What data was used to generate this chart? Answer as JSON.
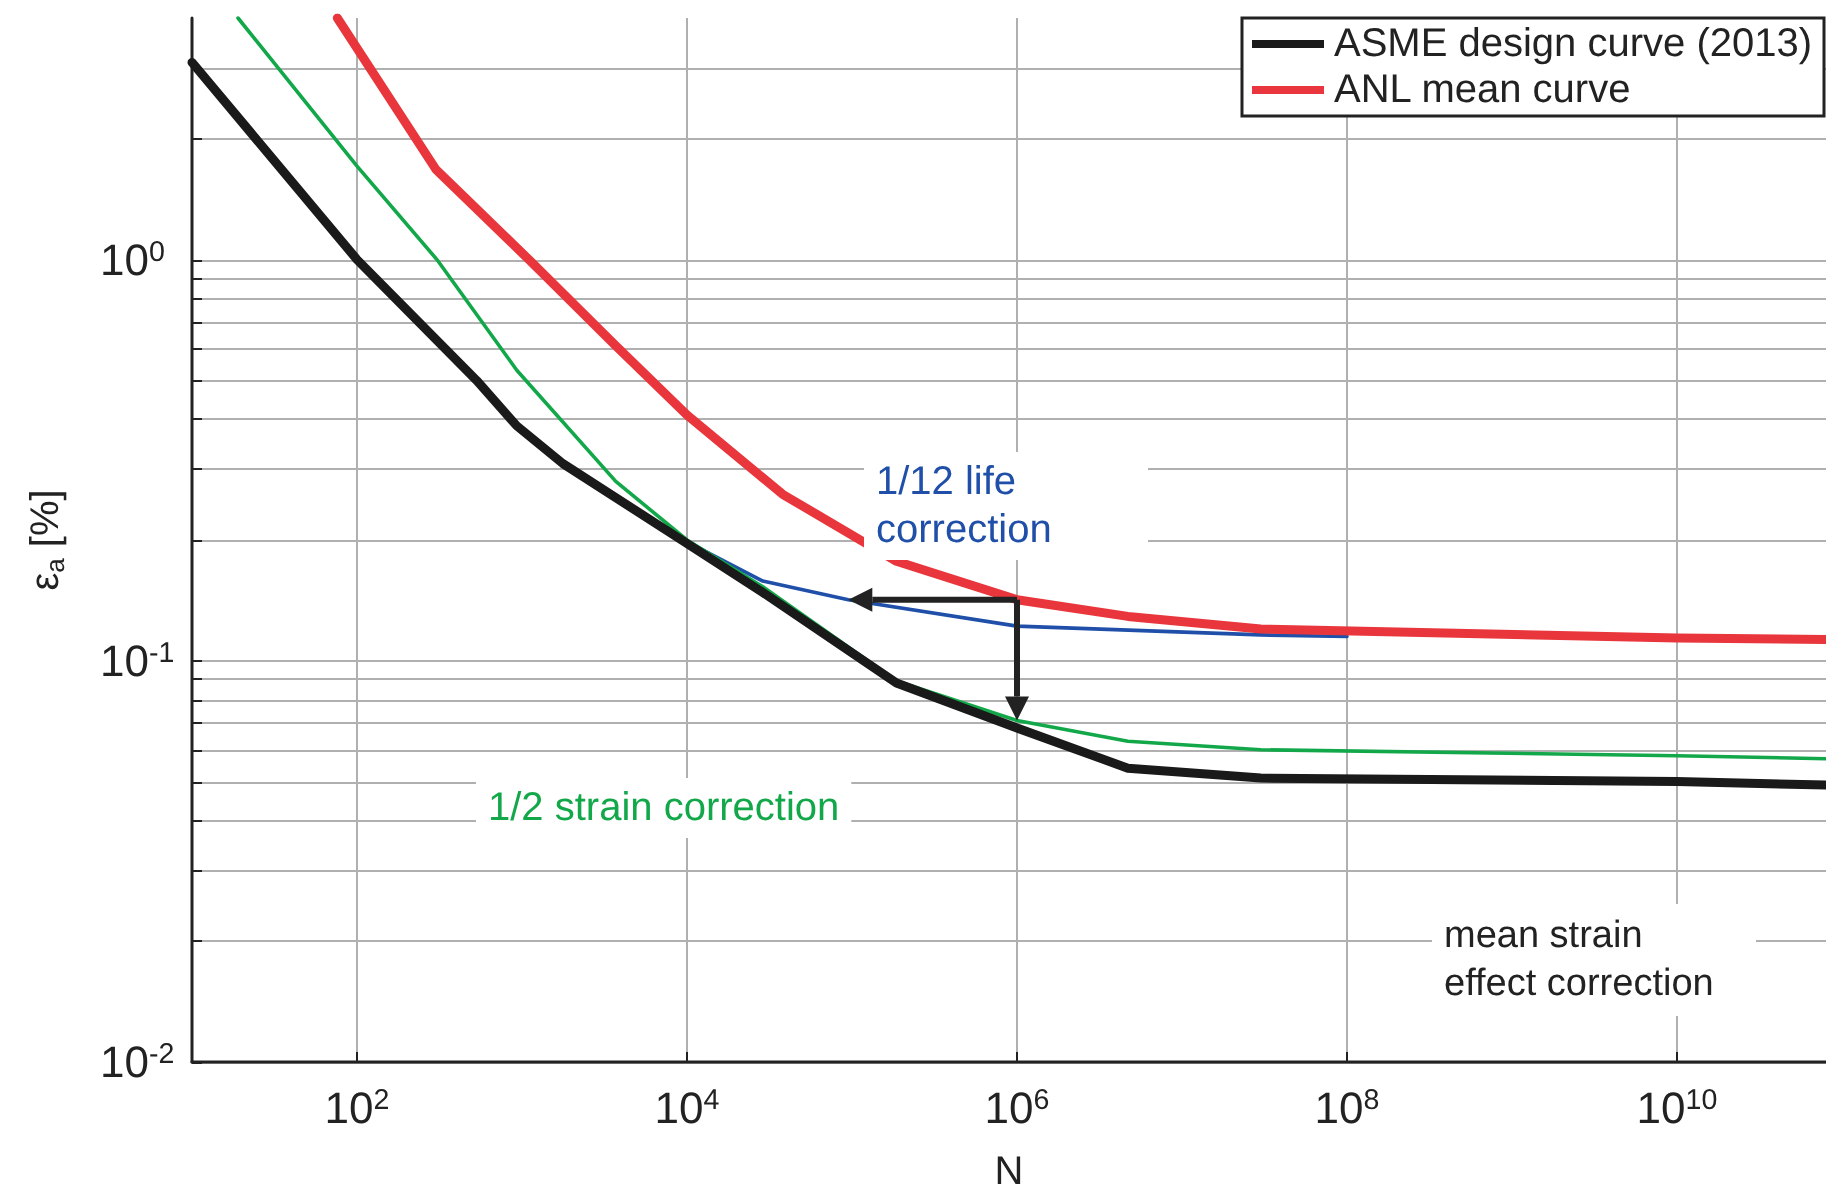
{
  "chart_data": {
    "type": "line",
    "xlabel": "N",
    "ylabel": "ε$_{a}$ [%]",
    "xlim": [
      10,
      80000000000.0
    ],
    "ylim": [
      0.01,
      4
    ],
    "xticks": [
      {
        "value": 100,
        "label": "10$^{2}$"
      },
      {
        "value": 10000,
        "label": "10$^{4}$"
      },
      {
        "value": 1000000,
        "label": "10$^{6}$"
      },
      {
        "value": 100000000,
        "label": "10$^{8}$"
      },
      {
        "value": 10000000000,
        "label": "10$^{10}$"
      }
    ],
    "yticks": [
      {
        "value": 0.01,
        "label": "10$^{-2}$"
      },
      {
        "value": 0.02,
        "label": null
      },
      {
        "value": 0.03,
        "label": null
      },
      {
        "value": 0.04,
        "label": null
      },
      {
        "value": 0.05,
        "label": null
      },
      {
        "value": 0.06,
        "label": null
      },
      {
        "value": 0.07,
        "label": null
      },
      {
        "value": 0.08,
        "label": null
      },
      {
        "value": 0.09,
        "label": null
      },
      {
        "value": 0.1,
        "label": "10$^{-1}$"
      },
      {
        "value": 0.2,
        "label": null
      },
      {
        "value": 0.3,
        "label": null
      },
      {
        "value": 0.4,
        "label": null
      },
      {
        "value": 0.5,
        "label": null
      },
      {
        "value": 0.6,
        "label": null
      },
      {
        "value": 0.7,
        "label": null
      },
      {
        "value": 0.8,
        "label": null
      },
      {
        "value": 0.9,
        "label": null
      },
      {
        "value": 1,
        "label": "10$^{0}$"
      },
      {
        "value": 2,
        "label": null
      },
      {
        "value": 3,
        "label": null
      }
    ],
    "log": "xy",
    "grid": true,
    "legend": "top right",
    "marker": "none",
    "line_style": "solid",
    "series": [
      {
        "name": "ASME design curve (2013)",
        "color": "#1a1a1a",
        "x": [
          10,
          100,
          530,
          930,
          1770,
          10000,
          28800,
          186000,
          1000000,
          4700000,
          30000000,
          10000000000,
          80000000000
        ],
        "values": [
          3.1,
          1.0,
          0.5,
          0.385,
          0.31,
          0.196,
          0.148,
          0.088,
          0.068,
          0.054,
          0.051,
          0.05,
          0.049
        ]
      },
      {
        "name": "ANL mean curve",
        "color": "#e8363c",
        "x": [
          76,
          300,
          1100,
          3700,
          10000,
          38000,
          186000,
          1000000,
          4700000,
          30000000,
          10000000000,
          80000000000
        ],
        "values": [
          4,
          1.68,
          1.0,
          0.61,
          0.41,
          0.26,
          0.177,
          0.142,
          0.129,
          0.12,
          0.114,
          0.113
        ]
      },
      {
        "name": "1/12 life correction",
        "color": "#1f4fa8",
        "x": [
          10000,
          28800,
          95000,
          1000000,
          30000000,
          100000000
        ],
        "values": [
          0.198,
          0.158,
          0.142,
          0.122,
          0.116,
          0.115
        ]
      },
      {
        "name": "1/2 strain correction",
        "color": "#12a84a",
        "x": [
          19,
          100,
          305,
          930,
          3700,
          10000,
          28800,
          186000,
          1000000,
          4700000,
          30000000,
          10000000000,
          80000000000
        ],
        "values": [
          4,
          1.71,
          1.0,
          0.53,
          0.28,
          0.2,
          0.153,
          0.089,
          0.071,
          0.063,
          0.06,
          0.058,
          0.057
        ]
      }
    ],
    "annotations": [
      "mean strain effect correction"
    ]
  }
}
